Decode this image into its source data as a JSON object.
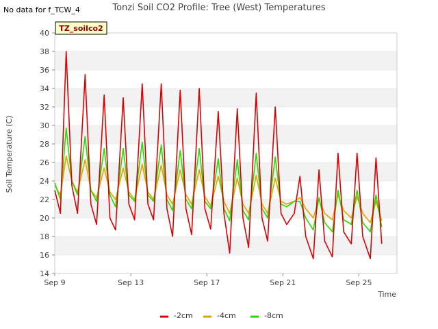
{
  "chart_data": {
    "type": "line",
    "title": "Tonzi Soil CO2 Profile: Tree (West) Temperatures",
    "nodata_note": "No data for f_TCW_4",
    "badge": "TZ_soilco2",
    "xlabel": "Time",
    "ylabel": "Soil Temperature (C)",
    "x_domain_days": [
      9,
      27
    ],
    "ylim": [
      14,
      40
    ],
    "yticks": [
      14,
      16,
      18,
      20,
      22,
      24,
      26,
      28,
      30,
      32,
      34,
      36,
      38,
      40
    ],
    "xticks": [
      {
        "day": 9,
        "label": "Sep 9"
      },
      {
        "day": 13,
        "label": "Sep 13"
      },
      {
        "day": 17,
        "label": "Sep 17"
      },
      {
        "day": 21,
        "label": "Sep 21"
      },
      {
        "day": 25,
        "label": "Sep 25"
      }
    ],
    "grid": "horizontal bands",
    "legend_position": "bottom-center",
    "series": [
      {
        "name": "-2cm",
        "color": "#dd0000",
        "x_days": [
          9.0,
          9.3,
          9.6,
          9.9,
          10.2,
          10.6,
          10.9,
          11.2,
          11.6,
          11.9,
          12.2,
          12.6,
          12.9,
          13.2,
          13.6,
          13.9,
          14.2,
          14.6,
          14.9,
          15.2,
          15.6,
          15.9,
          16.2,
          16.6,
          16.9,
          17.2,
          17.6,
          17.9,
          18.2,
          18.6,
          18.9,
          19.2,
          19.6,
          19.9,
          20.2,
          20.6,
          20.9,
          21.2,
          21.6,
          21.9,
          22.2,
          22.6,
          22.9,
          23.2,
          23.6,
          23.9,
          24.2,
          24.6,
          24.9,
          25.2,
          25.6,
          25.9,
          26.2
        ],
        "values": [
          23.0,
          20.5,
          38.0,
          23.5,
          20.5,
          35.5,
          21.5,
          19.3,
          33.3,
          20.0,
          18.7,
          33.0,
          21.5,
          19.8,
          34.5,
          21.5,
          19.8,
          34.5,
          21.0,
          18.0,
          33.8,
          21.0,
          18.2,
          34.0,
          21.0,
          18.8,
          31.5,
          20.5,
          16.2,
          31.8,
          20.0,
          16.8,
          33.5,
          20.0,
          17.5,
          32.0,
          20.5,
          19.3,
          20.5,
          24.5,
          18.0,
          15.6,
          25.2,
          17.5,
          15.8,
          27.0,
          18.5,
          17.2,
          27.0,
          18.0,
          15.6,
          26.5,
          17.2
        ]
      },
      {
        "name": "-4cm",
        "color": "#e8a000",
        "x_days": [
          9.0,
          9.3,
          9.6,
          9.9,
          10.2,
          10.6,
          10.9,
          11.2,
          11.6,
          11.9,
          12.2,
          12.6,
          12.9,
          13.2,
          13.6,
          13.9,
          14.2,
          14.6,
          14.9,
          15.2,
          15.6,
          15.9,
          16.2,
          16.6,
          16.9,
          17.2,
          17.6,
          17.9,
          18.2,
          18.6,
          18.9,
          19.2,
          19.6,
          19.9,
          20.2,
          20.6,
          20.9,
          21.2,
          21.6,
          21.9,
          22.2,
          22.6,
          22.9,
          23.2,
          23.6,
          23.9,
          24.2,
          24.6,
          24.9,
          25.2,
          25.6,
          25.9,
          26.2
        ],
        "values": [
          23.5,
          22.5,
          26.7,
          24.0,
          22.8,
          26.3,
          23.0,
          22.2,
          25.4,
          22.8,
          22.0,
          25.4,
          22.8,
          22.0,
          25.8,
          22.8,
          22.0,
          25.7,
          22.5,
          21.5,
          25.2,
          22.5,
          21.5,
          25.2,
          22.3,
          21.3,
          24.5,
          21.8,
          20.5,
          24.3,
          21.5,
          20.5,
          24.6,
          21.5,
          20.5,
          24.3,
          21.8,
          21.5,
          21.8,
          22.2,
          21.0,
          20.0,
          22.0,
          20.5,
          19.8,
          22.5,
          20.8,
          20.0,
          22.3,
          20.5,
          19.5,
          21.8,
          19.7
        ]
      },
      {
        "name": "-8cm",
        "color": "#22dd00",
        "x_days": [
          9.0,
          9.3,
          9.6,
          9.9,
          10.2,
          10.6,
          10.9,
          11.2,
          11.6,
          11.9,
          12.2,
          12.6,
          12.9,
          13.2,
          13.6,
          13.9,
          14.2,
          14.6,
          14.9,
          15.2,
          15.6,
          15.9,
          16.2,
          16.6,
          16.9,
          17.2,
          17.6,
          17.9,
          18.2,
          18.6,
          18.9,
          19.2,
          19.6,
          19.9,
          20.2,
          20.6,
          20.9,
          21.2,
          21.6,
          21.9,
          22.2,
          22.6,
          22.9,
          23.2,
          23.6,
          23.9,
          24.2,
          24.6,
          24.9,
          25.2,
          25.6,
          25.9,
          26.2
        ],
        "values": [
          23.8,
          22.0,
          29.7,
          24.0,
          22.5,
          28.8,
          23.0,
          21.8,
          27.5,
          22.5,
          21.2,
          27.5,
          22.5,
          21.8,
          28.2,
          22.5,
          21.8,
          27.9,
          22.0,
          20.8,
          27.3,
          22.0,
          21.0,
          27.5,
          21.8,
          21.0,
          26.4,
          21.0,
          19.7,
          26.3,
          20.8,
          19.8,
          27.0,
          21.0,
          20.0,
          26.6,
          21.5,
          21.2,
          21.8,
          21.8,
          20.0,
          18.7,
          22.2,
          19.5,
          18.5,
          23.0,
          19.8,
          19.3,
          23.0,
          19.5,
          18.5,
          22.5,
          19.0
        ]
      }
    ]
  }
}
